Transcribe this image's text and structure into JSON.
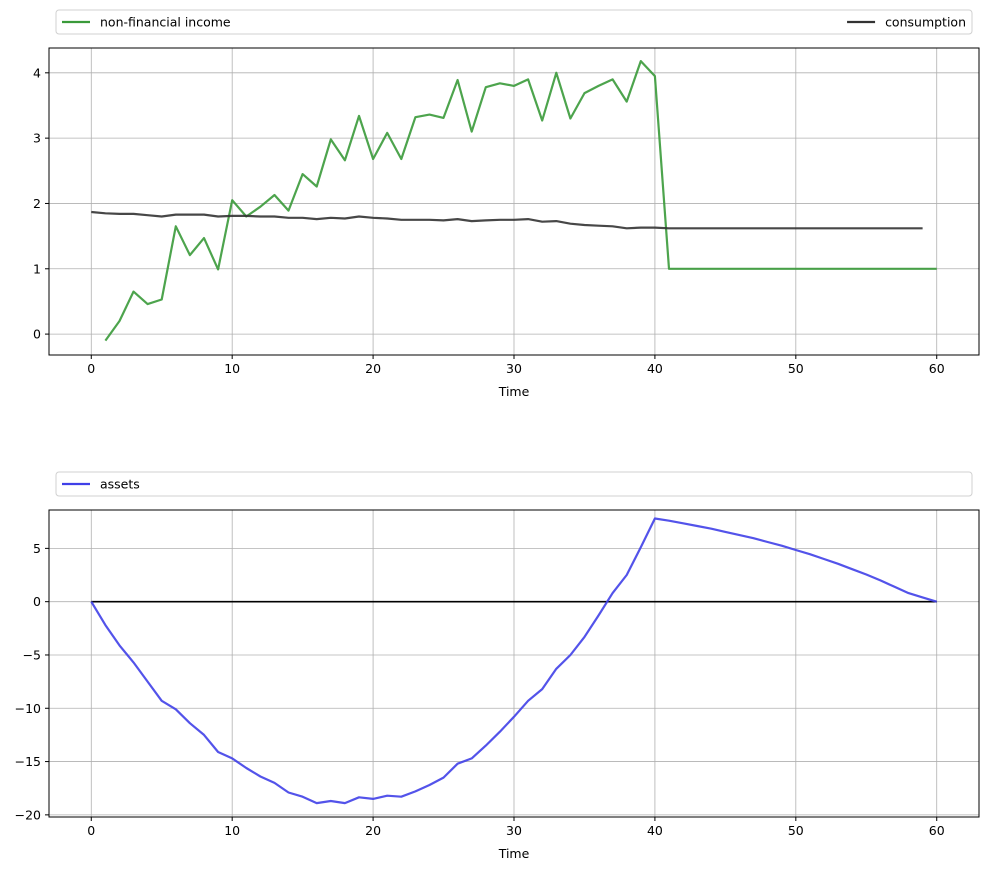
{
  "chart_data": [
    {
      "type": "line",
      "xlabel": "Time",
      "ylabel": "",
      "xlim": [
        -3,
        63
      ],
      "ylim": [
        -0.32,
        4.38
      ],
      "xticks": [
        0,
        10,
        20,
        30,
        40,
        50,
        60
      ],
      "yticks": [
        0,
        1,
        2,
        3,
        4
      ],
      "grid": true,
      "legend_placement": "above, spanning full width (one entry left, one entry right)",
      "series": [
        {
          "name": "non-financial income",
          "color": "#3a9a3a",
          "x": [
            1,
            2,
            3,
            4,
            5,
            6,
            7,
            8,
            9,
            10,
            11,
            12,
            13,
            14,
            15,
            16,
            17,
            18,
            19,
            20,
            21,
            22,
            23,
            24,
            25,
            26,
            27,
            28,
            29,
            30,
            31,
            32,
            33,
            34,
            35,
            36,
            37,
            38,
            39,
            40,
            41,
            42,
            43,
            44,
            45,
            46,
            47,
            48,
            49,
            50,
            51,
            52,
            53,
            54,
            55,
            56,
            57,
            58,
            59,
            60
          ],
          "values": [
            -0.1,
            0.2,
            0.65,
            0.46,
            0.53,
            1.65,
            1.21,
            1.47,
            0.99,
            2.05,
            1.8,
            1.95,
            2.13,
            1.89,
            2.45,
            2.26,
            2.98,
            2.66,
            3.34,
            2.68,
            3.08,
            2.68,
            3.32,
            3.36,
            3.31,
            3.89,
            3.1,
            3.78,
            3.84,
            3.8,
            3.9,
            3.27,
            4.0,
            3.3,
            3.69,
            3.8,
            3.9,
            3.56,
            4.18,
            3.95,
            1.0,
            1.0,
            1.0,
            1.0,
            1.0,
            1.0,
            1.0,
            1.0,
            1.0,
            1.0,
            1.0,
            1.0,
            1.0,
            1.0,
            1.0,
            1.0,
            1.0,
            1.0,
            1.0,
            1.0
          ]
        },
        {
          "name": "consumption",
          "color": "#333333",
          "x": [
            0,
            1,
            2,
            3,
            4,
            5,
            6,
            7,
            8,
            9,
            10,
            11,
            12,
            13,
            14,
            15,
            16,
            17,
            18,
            19,
            20,
            21,
            22,
            23,
            24,
            25,
            26,
            27,
            28,
            29,
            30,
            31,
            32,
            33,
            34,
            35,
            36,
            37,
            38,
            39,
            40,
            41,
            42,
            43,
            44,
            45,
            46,
            47,
            48,
            49,
            50,
            51,
            52,
            53,
            54,
            55,
            56,
            57,
            58,
            59
          ],
          "values": [
            1.87,
            1.85,
            1.84,
            1.84,
            1.82,
            1.8,
            1.83,
            1.83,
            1.83,
            1.8,
            1.81,
            1.81,
            1.8,
            1.8,
            1.78,
            1.78,
            1.76,
            1.78,
            1.77,
            1.8,
            1.78,
            1.77,
            1.75,
            1.75,
            1.75,
            1.74,
            1.76,
            1.73,
            1.74,
            1.75,
            1.75,
            1.76,
            1.72,
            1.73,
            1.69,
            1.67,
            1.66,
            1.65,
            1.62,
            1.63,
            1.63,
            1.62,
            1.62,
            1.62,
            1.62,
            1.62,
            1.62,
            1.62,
            1.62,
            1.62,
            1.62,
            1.62,
            1.62,
            1.62,
            1.62,
            1.62,
            1.62,
            1.62,
            1.62,
            1.62
          ]
        }
      ]
    },
    {
      "type": "line",
      "xlabel": "Time",
      "ylabel": "",
      "xlim": [
        -3,
        63
      ],
      "ylim": [
        -20.2,
        8.6
      ],
      "xticks": [
        0,
        10,
        20,
        30,
        40,
        50,
        60
      ],
      "yticks": [
        -20,
        -15,
        -10,
        -5,
        0,
        5
      ],
      "grid": true,
      "legend_placement": "above, spanning full width (left)",
      "zero_line": {
        "value": 0,
        "color": "#000000"
      },
      "series": [
        {
          "name": "assets",
          "color": "#4040e8",
          "x": [
            0,
            1,
            2,
            3,
            4,
            5,
            6,
            7,
            8,
            9,
            10,
            11,
            12,
            13,
            14,
            15,
            16,
            17,
            18,
            19,
            20,
            21,
            22,
            23,
            24,
            25,
            26,
            27,
            28,
            29,
            30,
            31,
            32,
            33,
            34,
            35,
            36,
            37,
            38,
            39,
            40,
            41,
            42,
            43,
            44,
            45,
            46,
            47,
            48,
            49,
            50,
            51,
            52,
            53,
            54,
            55,
            56,
            57,
            58,
            59,
            60
          ],
          "values": [
            0,
            -2.2,
            -4.1,
            -5.7,
            -7.5,
            -9.3,
            -10.1,
            -11.4,
            -12.5,
            -14.1,
            -14.7,
            -15.6,
            -16.4,
            -17.0,
            -17.9,
            -18.3,
            -18.9,
            -18.7,
            -18.9,
            -18.35,
            -18.5,
            -18.2,
            -18.3,
            -17.8,
            -17.2,
            -16.5,
            -15.2,
            -14.7,
            -13.5,
            -12.2,
            -10.8,
            -9.3,
            -8.2,
            -6.3,
            -5.0,
            -3.3,
            -1.3,
            0.8,
            2.5,
            5.1,
            7.8,
            7.6,
            7.35,
            7.1,
            6.85,
            6.55,
            6.25,
            5.95,
            5.6,
            5.25,
            4.85,
            4.45,
            4.0,
            3.55,
            3.05,
            2.55,
            2.0,
            1.4,
            0.8,
            0.4,
            0.0
          ]
        }
      ]
    }
  ]
}
